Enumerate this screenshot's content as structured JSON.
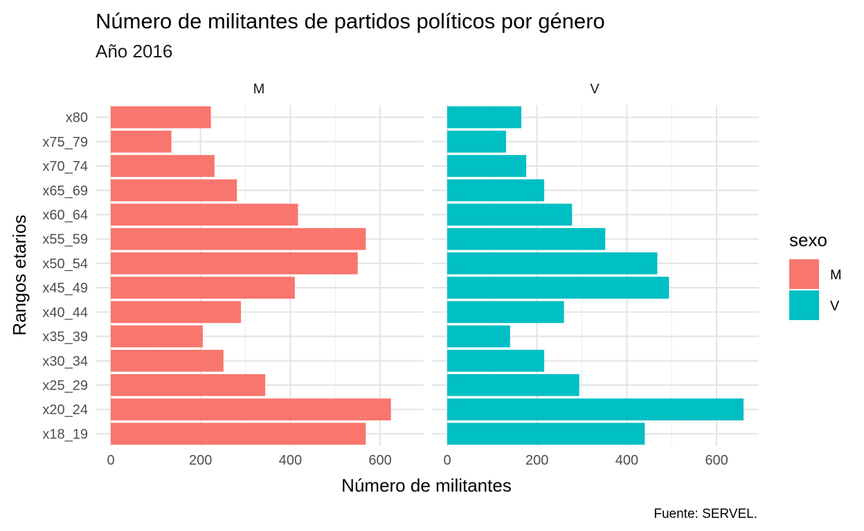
{
  "chart_data": {
    "type": "bar",
    "orientation": "horizontal",
    "title": "Número de militantes de partidos políticos por género",
    "subtitle": "Año 2016",
    "xlabel": "Número de militantes",
    "ylabel": "Rangos etarios",
    "caption": "Fuente: SERVEL.",
    "xlim": [
      0,
      680
    ],
    "xticks": [
      0,
      200,
      400,
      600
    ],
    "grid": true,
    "legend": {
      "title": "sexo",
      "position": "right",
      "entries": [
        {
          "label": "M",
          "color": "#F8766D"
        },
        {
          "label": "V",
          "color": "#00BFC4"
        }
      ]
    },
    "categories": [
      "x18_19",
      "x20_24",
      "x25_29",
      "x30_34",
      "x35_39",
      "x40_44",
      "x45_49",
      "x50_54",
      "x55_59",
      "x60_64",
      "x65_69",
      "x70_74",
      "x75_79",
      "x80"
    ],
    "facets": [
      {
        "label": "M",
        "color": "#F8766D",
        "values": [
          568,
          624,
          344,
          251,
          205,
          290,
          410,
          550,
          568,
          417,
          281,
          231,
          135,
          223
        ]
      },
      {
        "label": "V",
        "color": "#00BFC4",
        "values": [
          440,
          660,
          294,
          216,
          140,
          260,
          494,
          468,
          352,
          278,
          216,
          176,
          131,
          165
        ]
      }
    ]
  }
}
